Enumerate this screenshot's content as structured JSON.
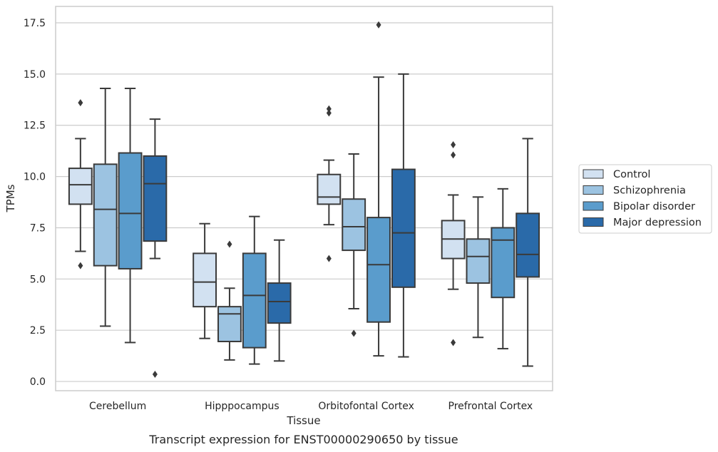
{
  "chart_data": {
    "type": "box",
    "title": "Transcript expression for ENST00000290650 by tissue",
    "xlabel": "Tissue",
    "ylabel": "TPMs",
    "ylim": [
      -0.45,
      18.3
    ],
    "yticks": [
      "0.0",
      "2.5",
      "5.0",
      "7.5",
      "10.0",
      "12.5",
      "15.0",
      "17.5"
    ],
    "grid": "horizontal",
    "legend_position": "right",
    "categories": [
      "Cerebellum",
      "Hipppocampus",
      "Orbitofontal Cortex",
      "Prefrontal Cortex"
    ],
    "series": [
      {
        "name": "Control",
        "color": "#d2e1f1",
        "boxes": [
          {
            "whisker_low": 6.35,
            "q1": 8.65,
            "median": 9.6,
            "q3": 10.4,
            "whisker_high": 11.85,
            "outliers": [
              13.6,
              5.65
            ]
          },
          {
            "whisker_low": 2.1,
            "q1": 3.65,
            "median": 4.85,
            "q3": 6.25,
            "whisker_high": 7.7,
            "outliers": []
          },
          {
            "whisker_low": 7.65,
            "q1": 8.65,
            "median": 9.0,
            "q3": 10.1,
            "whisker_high": 10.8,
            "outliers": [
              13.3,
              13.1,
              6.0
            ]
          },
          {
            "whisker_low": 4.5,
            "q1": 6.0,
            "median": 6.95,
            "q3": 7.85,
            "whisker_high": 9.1,
            "outliers": [
              11.55,
              11.05,
              1.9
            ]
          }
        ]
      },
      {
        "name": "Schizophrenia",
        "color": "#9cc3e1",
        "boxes": [
          {
            "whisker_low": 2.7,
            "q1": 5.65,
            "median": 8.4,
            "q3": 10.6,
            "whisker_high": 14.3,
            "outliers": []
          },
          {
            "whisker_low": 1.05,
            "q1": 1.95,
            "median": 3.3,
            "q3": 3.65,
            "whisker_high": 4.55,
            "outliers": [
              6.7
            ]
          },
          {
            "whisker_low": 3.55,
            "q1": 6.4,
            "median": 7.55,
            "q3": 8.9,
            "whisker_high": 11.1,
            "outliers": [
              2.35
            ]
          },
          {
            "whisker_low": 2.15,
            "q1": 4.8,
            "median": 6.1,
            "q3": 6.95,
            "whisker_high": 9.0,
            "outliers": []
          }
        ]
      },
      {
        "name": "Bipolar disorder",
        "color": "#5a9ccc",
        "boxes": [
          {
            "whisker_low": 1.9,
            "q1": 5.5,
            "median": 8.2,
            "q3": 11.15,
            "whisker_high": 14.3,
            "outliers": []
          },
          {
            "whisker_low": 0.85,
            "q1": 1.65,
            "median": 4.2,
            "q3": 6.25,
            "whisker_high": 8.05,
            "outliers": []
          },
          {
            "whisker_low": 1.25,
            "q1": 2.9,
            "median": 5.7,
            "q3": 8.0,
            "whisker_high": 14.85,
            "outliers": [
              17.4
            ]
          },
          {
            "whisker_low": 1.6,
            "q1": 4.1,
            "median": 6.9,
            "q3": 7.5,
            "whisker_high": 9.4,
            "outliers": []
          }
        ]
      },
      {
        "name": "Major depression",
        "color": "#2a6aa9",
        "boxes": [
          {
            "whisker_low": 6.0,
            "q1": 6.85,
            "median": 9.65,
            "q3": 11.0,
            "whisker_high": 12.8,
            "outliers": [
              0.35
            ]
          },
          {
            "whisker_low": 1.0,
            "q1": 2.85,
            "median": 3.9,
            "q3": 4.8,
            "whisker_high": 6.9,
            "outliers": []
          },
          {
            "whisker_low": 1.2,
            "q1": 4.6,
            "median": 7.25,
            "q3": 10.35,
            "whisker_high": 15.0,
            "outliers": []
          },
          {
            "whisker_low": 0.75,
            "q1": 5.1,
            "median": 6.2,
            "q3": 8.2,
            "whisker_high": 11.85,
            "outliers": []
          }
        ]
      }
    ]
  }
}
